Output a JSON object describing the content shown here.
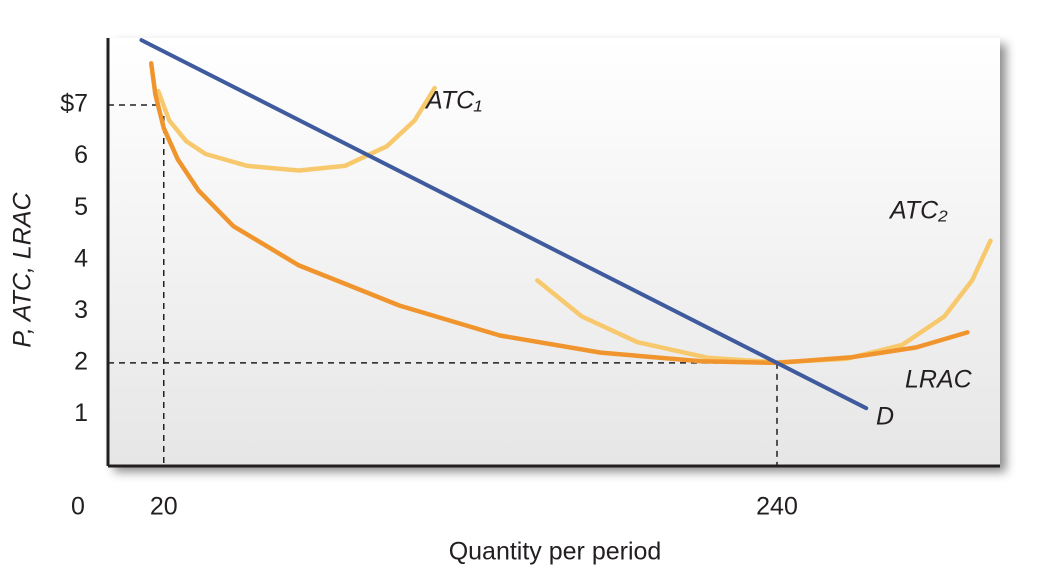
{
  "chart_data": {
    "type": "line",
    "y_label": "P, ATC, LRAC",
    "x_label": "Quantity per period",
    "origin_label": "0",
    "xlim": [
      0,
      320
    ],
    "ylim": [
      0,
      8.3
    ],
    "xticks": [
      20,
      240
    ],
    "yticks": [
      1,
      2,
      3,
      4,
      5,
      6,
      {
        "value": 7,
        "label": "$7"
      }
    ],
    "guides": [
      {
        "x": 20,
        "y": 7
      },
      {
        "x": 240,
        "y": 2
      }
    ],
    "series": [
      {
        "name": "D",
        "color": "#3f5b9e",
        "x": [
          12,
          272
        ],
        "values": [
          8.26,
          1.12
        ]
      },
      {
        "name": "LRAC",
        "color": "#f0952d",
        "x": [
          15.5,
          17,
          20,
          25,
          32.5,
          45,
          68.5,
          104.6,
          140.6,
          176.7,
          212.8,
          240,
          266.9,
          290,
          308.3
        ],
        "values": [
          7.81,
          7.2,
          6.55,
          5.95,
          5.34,
          4.65,
          3.89,
          3.11,
          2.53,
          2.2,
          2.03,
          2,
          2.11,
          2.3,
          2.59
        ]
      },
      {
        "name": "ATC₁",
        "color": "#f8c96c",
        "x": [
          18,
          22,
          28,
          35,
          50,
          68.5,
          85,
          100,
          110,
          117.2
        ],
        "values": [
          7.27,
          6.7,
          6.3,
          6.05,
          5.82,
          5.73,
          5.82,
          6.2,
          6.7,
          7.33
        ]
      },
      {
        "name": "ATC₂",
        "color": "#f8c96c",
        "x": [
          154,
          170,
          190,
          215,
          240,
          265,
          285,
          300,
          310,
          316.6
        ],
        "values": [
          3.6,
          2.9,
          2.4,
          2.1,
          2.01,
          2.08,
          2.35,
          2.9,
          3.6,
          4.37
        ]
      }
    ]
  }
}
